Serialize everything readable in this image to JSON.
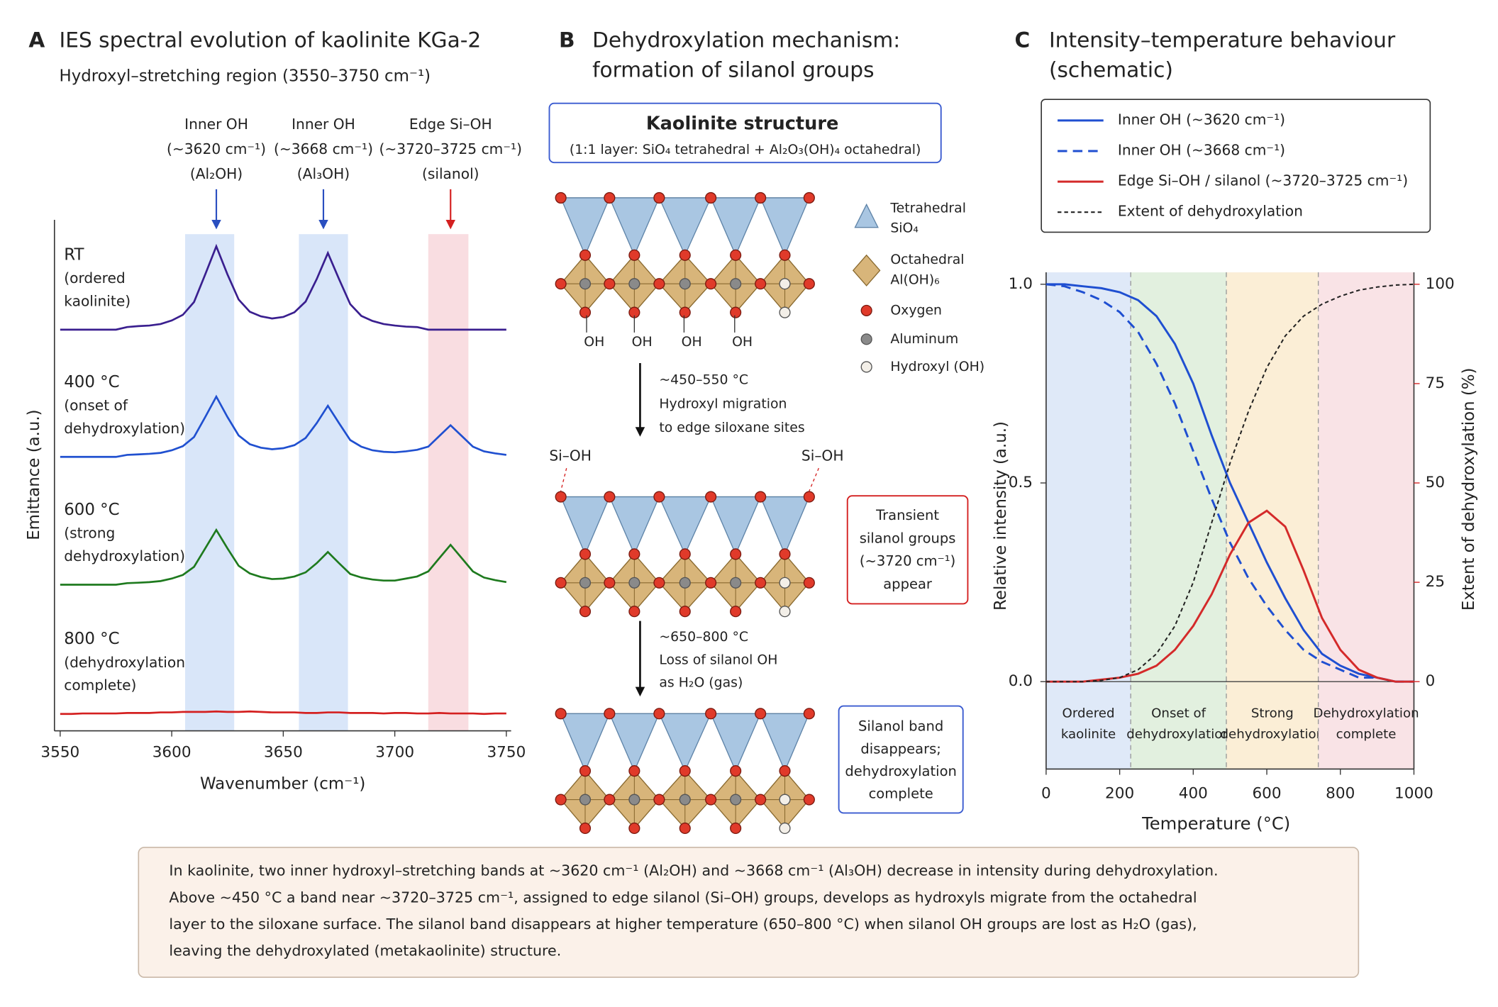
{
  "chart_data": [
    {
      "type": "line",
      "panel": "A",
      "title": "IES spectral evolution of kaolinite KGa-2",
      "subtitle": "Hydroxyl–stretching region (3550–3750 cm⁻¹)",
      "x_label": "Wavenumber (cm⁻¹)",
      "y_label": "Emittance (a.u.)",
      "x": [
        3550,
        3555,
        3560,
        3565,
        3570,
        3575,
        3580,
        3585,
        3590,
        3595,
        3600,
        3605,
        3610,
        3615,
        3620,
        3625,
        3630,
        3635,
        3640,
        3645,
        3650,
        3655,
        3660,
        3665,
        3670,
        3675,
        3680,
        3685,
        3690,
        3695,
        3700,
        3705,
        3710,
        3715,
        3720,
        3725,
        3730,
        3735,
        3740,
        3745,
        3750
      ],
      "xlim": [
        3550,
        3750
      ],
      "xticks": [
        3550,
        3600,
        3650,
        3700,
        3750
      ],
      "ylim": [
        0,
        10
      ],
      "series": [
        {
          "name": "RT",
          "description": [
            "(ordered",
            "kaolinite)"
          ],
          "color": "#3a1f8f",
          "values": [
            7.85,
            7.85,
            7.85,
            7.85,
            7.85,
            7.85,
            7.9,
            7.92,
            7.93,
            7.96,
            8.03,
            8.14,
            8.39,
            8.93,
            9.48,
            8.93,
            8.44,
            8.2,
            8.11,
            8.07,
            8.1,
            8.19,
            8.4,
            8.84,
            9.35,
            8.84,
            8.35,
            8.12,
            8.02,
            7.96,
            7.93,
            7.91,
            7.9,
            7.85,
            7.85,
            7.85,
            7.85,
            7.85,
            7.85,
            7.85,
            7.85
          ]
        },
        {
          "name": "400 °C",
          "description": [
            "(onset of",
            "dehydroxylation)"
          ],
          "color": "#2050d0",
          "values": [
            5.36,
            5.36,
            5.36,
            5.36,
            5.36,
            5.36,
            5.4,
            5.41,
            5.42,
            5.44,
            5.49,
            5.57,
            5.75,
            6.14,
            6.54,
            6.14,
            5.78,
            5.61,
            5.54,
            5.51,
            5.53,
            5.59,
            5.73,
            6.02,
            6.36,
            6.02,
            5.69,
            5.56,
            5.49,
            5.46,
            5.45,
            5.47,
            5.5,
            5.56,
            5.77,
            5.98,
            5.77,
            5.56,
            5.47,
            5.43,
            5.4
          ]
        },
        {
          "name": "600 °C",
          "description": [
            "(strong",
            "dehydroxylation)"
          ],
          "color": "#1e7a1e",
          "values": [
            2.86,
            2.86,
            2.86,
            2.86,
            2.86,
            2.86,
            2.89,
            2.9,
            2.91,
            2.93,
            2.98,
            3.05,
            3.21,
            3.57,
            3.93,
            3.57,
            3.23,
            3.08,
            3.01,
            2.97,
            2.98,
            3.02,
            3.1,
            3.28,
            3.5,
            3.28,
            3.07,
            3.0,
            2.96,
            2.94,
            2.94,
            2.98,
            3.02,
            3.12,
            3.38,
            3.64,
            3.38,
            3.12,
            3.0,
            2.95,
            2.91
          ]
        },
        {
          "name": "800 °C",
          "description": [
            "(dehydroxylation",
            "complete)"
          ],
          "color": "#d42020",
          "values": [
            0.33,
            0.33,
            0.34,
            0.34,
            0.34,
            0.34,
            0.35,
            0.35,
            0.35,
            0.36,
            0.36,
            0.37,
            0.37,
            0.37,
            0.38,
            0.37,
            0.37,
            0.38,
            0.37,
            0.36,
            0.36,
            0.36,
            0.35,
            0.35,
            0.36,
            0.36,
            0.35,
            0.35,
            0.35,
            0.34,
            0.35,
            0.35,
            0.34,
            0.34,
            0.35,
            0.34,
            0.34,
            0.34,
            0.33,
            0.34,
            0.34
          ]
        }
      ],
      "bands": [
        {
          "from": 3606,
          "to": 3628,
          "color": "#cfe0f7"
        },
        {
          "from": 3657,
          "to": 3679,
          "color": "#cfe0f7"
        },
        {
          "from": 3715,
          "to": 3733,
          "color": "#f8d5da"
        }
      ],
      "annotations": [
        {
          "x": 3620,
          "lines": [
            "Inner OH",
            "(~3620 cm⁻¹)",
            "(Al₂OH)"
          ],
          "color": "#2a4fc0"
        },
        {
          "x": 3668,
          "lines": [
            "Inner OH",
            "(~3668 cm⁻¹)",
            "(Al₃OH)"
          ],
          "color": "#2a4fc0"
        },
        {
          "x": 3725,
          "lines": [
            "Edge Si–OH",
            "(~3720–3725 cm⁻¹)",
            "(silanol)"
          ],
          "color": "#d42020"
        }
      ]
    },
    {
      "type": "line",
      "panel": "C",
      "title": [
        "Intensity–temperature behaviour",
        "(schematic)"
      ],
      "x_label": "Temperature (°C)",
      "y_label": "Relative intensity (a.u.)",
      "y2_label": "Extent of dehydroxylation (%)",
      "x": [
        0,
        50,
        100,
        150,
        200,
        250,
        300,
        350,
        400,
        450,
        500,
        550,
        600,
        650,
        700,
        750,
        800,
        850,
        900,
        950,
        1000
      ],
      "xlim": [
        0,
        1000
      ],
      "xticks": [
        0,
        200,
        400,
        600,
        800,
        1000
      ],
      "ylim": [
        -0.22,
        1.03
      ],
      "yticks": [
        {
          "value": 0,
          "label": "0.0"
        },
        {
          "value": 0.5,
          "label": "0.5"
        },
        {
          "value": 1,
          "label": "1.0"
        }
      ],
      "y2lim": [
        -22,
        103
      ],
      "y2ticks": [
        0,
        25,
        50,
        75,
        100
      ],
      "series": [
        {
          "name": "Inner OH (~3620 cm⁻¹)",
          "color": "#1f4fd1",
          "linestyle": "solid",
          "values": [
            1.0,
            1.0,
            0.995,
            0.99,
            0.98,
            0.96,
            0.92,
            0.85,
            0.75,
            0.62,
            0.5,
            0.4,
            0.3,
            0.21,
            0.13,
            0.07,
            0.04,
            0.02,
            0.01,
            0,
            0
          ]
        },
        {
          "name": "Inner OH (~3668 cm⁻¹)",
          "color": "#1f4fd1",
          "linestyle": "dashed",
          "values": [
            1.0,
            0.995,
            0.98,
            0.96,
            0.93,
            0.88,
            0.8,
            0.7,
            0.58,
            0.46,
            0.35,
            0.26,
            0.19,
            0.13,
            0.08,
            0.05,
            0.03,
            0.01,
            0.01,
            0,
            0
          ]
        },
        {
          "name": "Edge Si–OH / silanol (~3720–3725 cm⁻¹)",
          "color": "#d42a2a",
          "linestyle": "solid",
          "values": [
            0,
            0,
            0,
            0.005,
            0.01,
            0.02,
            0.04,
            0.08,
            0.14,
            0.22,
            0.32,
            0.4,
            0.43,
            0.39,
            0.28,
            0.16,
            0.08,
            0.03,
            0.01,
            0,
            0
          ]
        },
        {
          "name": "Extent of dehydroxylation",
          "color": "#222222",
          "linestyle": "dotted",
          "axis": "y2",
          "values": [
            0,
            0,
            0,
            0.3,
            1,
            3,
            7,
            14,
            25,
            40,
            55,
            68,
            79,
            87,
            92,
            95,
            97,
            98.5,
            99.3,
            99.8,
            100
          ]
        }
      ],
      "regions": [
        {
          "from": 0,
          "to": 230,
          "label": [
            "Ordered",
            "kaolinite"
          ],
          "color": "#dfe9f8",
          "label_color": "#2a4fc0"
        },
        {
          "from": 230,
          "to": 490,
          "label": [
            "Onset of",
            "dehydroxylation"
          ],
          "color": "#e2f0df",
          "label_color": "#333333"
        },
        {
          "from": 490,
          "to": 740,
          "label": [
            "Strong",
            "dehydroxylation"
          ],
          "color": "#fbeed6",
          "label_color": "#333333"
        },
        {
          "from": 740,
          "to": 1000,
          "label": [
            "Dehydroxylation",
            "complete"
          ],
          "color": "#f9e3e6",
          "label_color": "#333333"
        }
      ]
    }
  ],
  "mechanism": {
    "panel": "B",
    "title": [
      "Dehydroxylation mechanism:",
      "formation of silanol groups"
    ],
    "structure_box": {
      "title": "Kaolinite structure",
      "subtitle": "(1:1 layer: SiO₄ tetrahedral + Al₂O₃(OH)₄ octahedral)"
    },
    "legend": {
      "tetrahedral": [
        "Tetrahedral",
        "SiO₄"
      ],
      "octahedral": [
        "Octahedral",
        "Al(OH)₆"
      ],
      "oxygen": "Oxygen",
      "aluminum": "Aluminum",
      "hydroxyl": "Hydroxyl (OH)"
    },
    "oh_labels": [
      "OH",
      "OH",
      "OH",
      "OH"
    ],
    "step1": [
      "~450–550 °C",
      "Hydroxyl migration",
      "to edge siloxane sites"
    ],
    "silanol_labels": [
      "Si–OH",
      "Si–OH"
    ],
    "transient_box": [
      "Transient",
      "silanol groups",
      "(~3720 cm⁻¹)",
      "appear"
    ],
    "step2": [
      "~650–800 °C",
      "Loss of silanol OH",
      "as H₂O (gas)"
    ],
    "final_box": [
      "Silanol band",
      "disappears;",
      "dehydroxylation",
      "complete"
    ]
  },
  "caption": [
    "In kaolinite, two inner hydroxyl–stretching bands at ~3620 cm⁻¹ (Al₂OH) and ~3668 cm⁻¹ (Al₃OH) decrease in intensity during dehydroxylation.",
    "Above ~450 °C a band near ~3720–3725 cm⁻¹, assigned to edge silanol (Si–OH) groups, develops as hydroxyls migrate from the octahedral",
    "layer to the siloxane surface. The silanol band disappears at higher temperature (650–800 °C) when silanol OH groups are lost as H₂O (gas),",
    "leaving the dehydroxylated (metakaolinite) structure."
  ]
}
